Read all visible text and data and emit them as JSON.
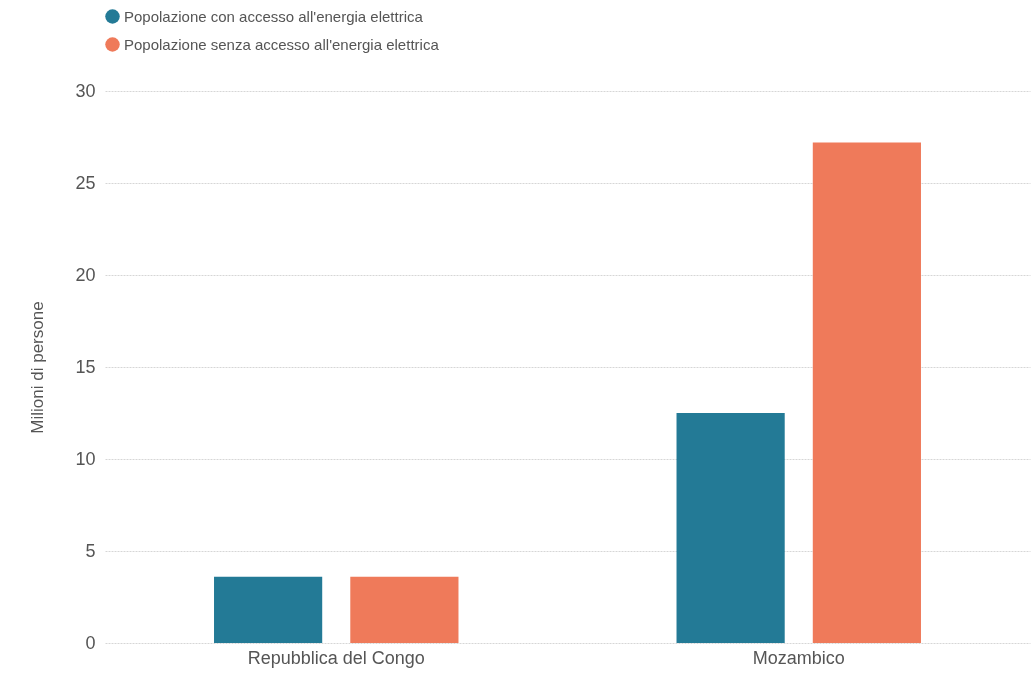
{
  "chart_data": {
    "type": "bar",
    "categories": [
      "Repubblica del Congo",
      "Mozambico"
    ],
    "series": [
      {
        "name": "Popolazione con accesso all'energia elettrica",
        "color": "#237a96",
        "values": [
          3.6,
          12.5
        ]
      },
      {
        "name": "Popolazione senza accesso all'energia elettrica",
        "color": "#ef7a5a",
        "values": [
          3.6,
          27.2
        ]
      }
    ],
    "ylabel": "Milioni di persone",
    "ylim": [
      0,
      30
    ],
    "yticks": [
      0,
      5,
      10,
      15,
      20,
      25,
      30
    ],
    "grid": "y",
    "legend": "top left"
  }
}
